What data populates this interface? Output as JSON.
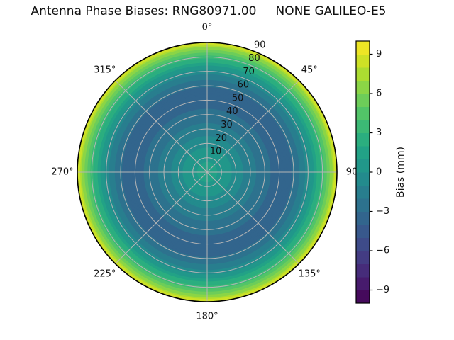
{
  "title": "Antenna Phase Biases: RNG80971.00     NONE GALILEO-E5",
  "chart_data": {
    "type": "heatmap",
    "subtype": "polar-filled-contour",
    "title": "Antenna Phase Biases: RNG80971.00     NONE GALILEO-E5",
    "theta_ticks": [
      {
        "angle_deg": 0,
        "label": "0°"
      },
      {
        "angle_deg": 45,
        "label": "45°"
      },
      {
        "angle_deg": 90,
        "label": "90"
      },
      {
        "angle_deg": 135,
        "label": "135°"
      },
      {
        "angle_deg": 180,
        "label": "180°"
      },
      {
        "angle_deg": 225,
        "label": "225°"
      },
      {
        "angle_deg": 270,
        "label": "270°"
      },
      {
        "angle_deg": 315,
        "label": "315°"
      }
    ],
    "r_axis": {
      "min": 0,
      "max": 90,
      "ticks": [
        10,
        20,
        30,
        40,
        50,
        60,
        70,
        80,
        90
      ],
      "label_angle_deg": 22.5
    },
    "radial_profile": {
      "zenith_deg": [
        0,
        10,
        20,
        30,
        40,
        45,
        50,
        58,
        65,
        70,
        75,
        80,
        84,
        87,
        89,
        90
      ],
      "bias_mm": [
        1.5,
        0.8,
        -0.4,
        -1.6,
        -2.6,
        -3.1,
        -3.3,
        -3.1,
        -1.8,
        -0.3,
        1.5,
        3.5,
        5.5,
        7.2,
        8.3,
        8.9
      ]
    },
    "contour": {
      "vmin": -10,
      "vmax": 10,
      "level_step_mm": 1
    },
    "colorbar": {
      "label": "Bias (mm)",
      "tick_values": [
        9,
        6,
        3,
        0,
        -3,
        -6,
        -9
      ],
      "tick_labels": [
        "9",
        "6",
        "3",
        "0",
        "−3",
        "−6",
        "−9"
      ]
    },
    "colormap": {
      "name": "viridis",
      "stops": [
        [
          0.0,
          "#440154"
        ],
        [
          0.1,
          "#482475"
        ],
        [
          0.2,
          "#414487"
        ],
        [
          0.3,
          "#355f8d"
        ],
        [
          0.4,
          "#2a788e"
        ],
        [
          0.5,
          "#21918c"
        ],
        [
          0.6,
          "#22a884"
        ],
        [
          0.7,
          "#44bf70"
        ],
        [
          0.8,
          "#7ad151"
        ],
        [
          0.9,
          "#bddf26"
        ],
        [
          1.0,
          "#fde725"
        ]
      ]
    },
    "grid_color": "#b5b5b5",
    "outline_color": "#000000",
    "text_color": "#111111",
    "background_color": "#ffffff"
  }
}
